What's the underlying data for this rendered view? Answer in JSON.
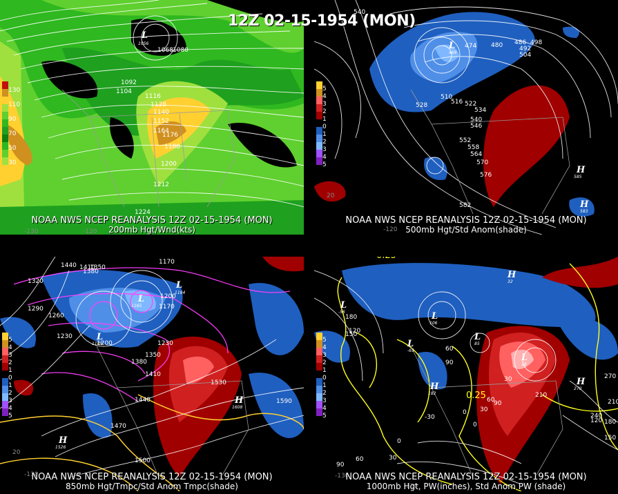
{
  "title": "12Z 02-15-1954 (MON)",
  "colors": {
    "background": "#000000",
    "contour": "#ffffff",
    "temp_contour": "#ff40ff",
    "pw_contour": "#ffff20",
    "anom_neg": [
      "#1f5fbf",
      "#4f8fe8",
      "#7fb8ff"
    ],
    "anom_pos": [
      "#a00000",
      "#d02020",
      "#ff6060"
    ],
    "wind": [
      "#1fa01f",
      "#5fd02f",
      "#9fe03f",
      "#ffd030",
      "#d09020"
    ]
  },
  "panels": [
    {
      "id": "200mb",
      "source": "NOAA NWS NCEP REANALYSIS 12Z 02-15-1954 (MON)",
      "field": "200mb Hgt/Wnd(kts)",
      "legend": [
        "130",
        "110",
        "90",
        "70",
        "50",
        "30"
      ],
      "contour_labels": [
        "1068",
        "1080",
        "1092",
        "1104",
        "1116",
        "1128",
        "1140",
        "1152",
        "1164",
        "1176",
        "1188",
        "1200",
        "1212",
        "1224"
      ],
      "lows": [
        {
          "letter": "L",
          "value": "1056"
        }
      ],
      "highs": [],
      "ticks": [
        "-130",
        "-120"
      ]
    },
    {
      "id": "500mb",
      "source": "NOAA NWS NCEP REANALYSIS 12Z 02-15-1954 (MON)",
      "field": "500mb Hgt/Std Anom(shade)",
      "legend": [
        "5",
        "4",
        "3",
        "2",
        "1",
        "0",
        "1",
        "2",
        "3",
        "4",
        "5"
      ],
      "contour_labels": [
        "540",
        "474",
        "480",
        "486",
        "492",
        "498",
        "504",
        "510",
        "516",
        "522",
        "528",
        "534",
        "540",
        "546",
        "552",
        "558",
        "564",
        "570",
        "576",
        "582"
      ],
      "lows": [
        {
          "letter": "L",
          "value": "469"
        }
      ],
      "highs": [
        {
          "letter": "H",
          "value": "585"
        },
        {
          "letter": "H",
          "value": "583"
        }
      ],
      "ticks": [
        "20",
        "-120"
      ]
    },
    {
      "id": "850mb",
      "source": "NOAA NWS NCEP REANALYSIS 12Z 02-15-1954 (MON)",
      "field": "850mb Hgt/Tmpc/Std Anom Tmpc(shade)",
      "legend": [
        "5",
        "4",
        "3",
        "2",
        "1",
        "0",
        "1",
        "2",
        "3",
        "4",
        "5"
      ],
      "contour_labels": [
        "1440",
        "1410",
        "1380",
        "1350",
        "1320",
        "1290",
        "1260",
        "1230",
        "1200",
        "1170",
        "1170",
        "1200",
        "1230",
        "1350",
        "1380",
        "1410",
        "1440",
        "1470",
        "1500",
        "1530",
        "1590"
      ],
      "lows": [
        {
          "letter": "L",
          "value": "1184"
        },
        {
          "letter": "L",
          "value": "1165"
        },
        {
          "letter": "L",
          "value": "1189"
        },
        {
          "letter": "L",
          "value": "1166"
        }
      ],
      "highs": [
        {
          "letter": "H",
          "value": "1608"
        },
        {
          "letter": "H",
          "value": "1526"
        }
      ],
      "ticks": [
        "20",
        "-130"
      ]
    },
    {
      "id": "1000mb",
      "source": "NOAA NWS NCEP REANALYSIS 12Z 02-15-1954 (MON)",
      "field": "1000mb Hgt, PW(inches), Std Anom PW (shade)",
      "legend": [
        "5",
        "4",
        "3",
        "2",
        "1",
        "0",
        "1",
        "2",
        "3",
        "4",
        "5"
      ],
      "contour_labels": [
        "0.25",
        "0.25",
        "210",
        "180",
        "150",
        "120",
        "90",
        "60",
        "30",
        "0",
        "-30",
        "0",
        "30",
        "60",
        "90",
        "120",
        "150",
        "180",
        "210",
        "240",
        "270",
        "30",
        "0",
        "60",
        "90"
      ],
      "lows": [
        {
          "letter": "L",
          "value": "-56"
        },
        {
          "letter": "L",
          "value": "106"
        },
        {
          "letter": "L",
          "value": "85"
        },
        {
          "letter": "L",
          "value": "-65"
        },
        {
          "letter": "L",
          "value": "28"
        }
      ],
      "highs": [
        {
          "letter": "H",
          "value": "270"
        },
        {
          "letter": "H",
          "value": "182"
        },
        {
          "letter": "H",
          "value": "32"
        }
      ],
      "ticks": [
        "-130",
        "-120"
      ]
    }
  ]
}
